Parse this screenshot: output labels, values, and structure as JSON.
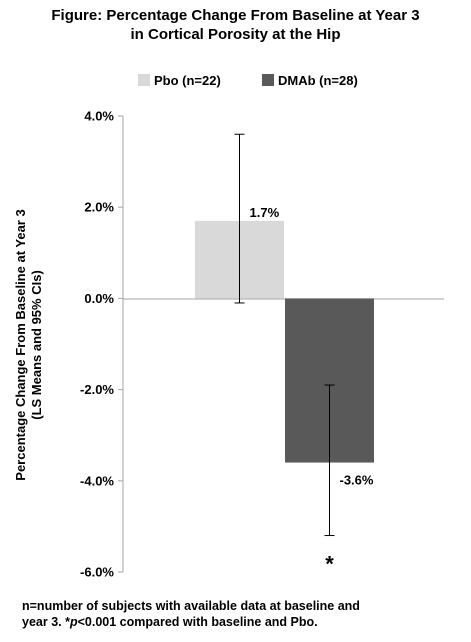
{
  "title": {
    "line1": "Figure:  Percentage Change From Baseline at Year 3",
    "line2": "in Cortical Porosity at the Hip"
  },
  "footnote": {
    "line1": "n=number of subjects with available data at baseline and",
    "line2_a": "year 3.  *",
    "line2_p": "p",
    "line2_b": "<0.001 compared with baseline and Pbo."
  },
  "colors": {
    "pbo": "#d9d9d9",
    "dmab": "#595959",
    "axis": "#a6a6a6"
  },
  "chart_data": {
    "type": "bar",
    "title": "Percentage Change From Baseline at Year 3 in Cortical Porosity at the Hip",
    "ylabel_line1": "Percentage Change From Baseline at Year 3",
    "ylabel_line2": "(LS Means and 95% CIs)",
    "ylim": [
      -6.0,
      4.0
    ],
    "yticks": [
      4.0,
      2.0,
      0.0,
      -2.0,
      -4.0,
      -6.0
    ],
    "ytick_labels": [
      "4.0%",
      "2.0%",
      "0.0%",
      "-2.0%",
      "-4.0%",
      "-6.0%"
    ],
    "grid": false,
    "legend_placement": "top",
    "series": [
      {
        "name": "Pbo (n=22)",
        "value": 1.7,
        "label": "1.7%",
        "ci": [
          -0.1,
          3.6
        ],
        "color": "#d9d9d9"
      },
      {
        "name": "DMAb (n=28)",
        "value": -3.6,
        "label": "-3.6%",
        "ci": [
          -5.2,
          -1.9
        ],
        "color": "#595959",
        "annotation": "*"
      }
    ]
  }
}
